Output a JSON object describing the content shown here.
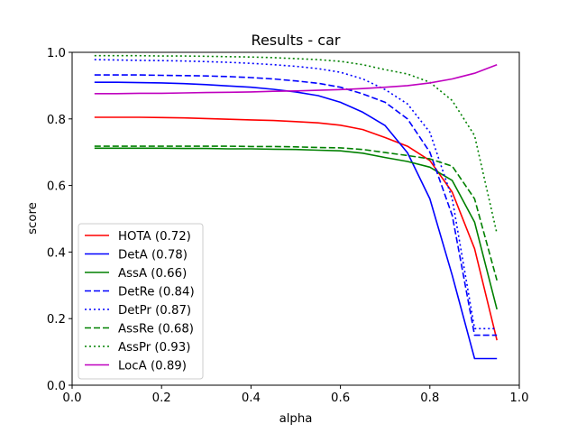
{
  "chart_data": {
    "type": "line",
    "title": "Results - car",
    "xlabel": "alpha",
    "ylabel": "score",
    "xlim": [
      0.0,
      1.0
    ],
    "ylim": [
      0.0,
      1.0
    ],
    "xticks": [
      "0.0",
      "0.2",
      "0.4",
      "0.6",
      "0.8",
      "1.0"
    ],
    "yticks": [
      "0.0",
      "0.2",
      "0.4",
      "0.6",
      "0.8",
      "1.0"
    ],
    "grid": false,
    "legend_position": "lower-left",
    "x": [
      0.05,
      0.1,
      0.15,
      0.2,
      0.25,
      0.3,
      0.35,
      0.4,
      0.45,
      0.5,
      0.55,
      0.6,
      0.65,
      0.7,
      0.75,
      0.8,
      0.85,
      0.9,
      0.95
    ],
    "series": [
      {
        "name": "HOTA (0.72)",
        "color": "#ff0000",
        "dash": "solid",
        "values": [
          0.805,
          0.805,
          0.805,
          0.804,
          0.803,
          0.801,
          0.799,
          0.797,
          0.795,
          0.792,
          0.788,
          0.781,
          0.768,
          0.744,
          0.718,
          0.675,
          0.58,
          0.41,
          0.135
        ]
      },
      {
        "name": "DetA (0.78)",
        "color": "#0000ff",
        "dash": "solid",
        "values": [
          0.91,
          0.91,
          0.909,
          0.908,
          0.906,
          0.903,
          0.899,
          0.895,
          0.889,
          0.881,
          0.87,
          0.85,
          0.82,
          0.78,
          0.698,
          0.56,
          0.33,
          0.08,
          0.08
        ]
      },
      {
        "name": "AssA (0.66)",
        "color": "#008000",
        "dash": "solid",
        "values": [
          0.712,
          0.712,
          0.712,
          0.712,
          0.711,
          0.711,
          0.71,
          0.71,
          0.709,
          0.708,
          0.706,
          0.704,
          0.697,
          0.684,
          0.672,
          0.655,
          0.615,
          0.49,
          0.228
        ]
      },
      {
        "name": "DetRe (0.84)",
        "color": "#0000ff",
        "dash": "dashed",
        "values": [
          0.932,
          0.932,
          0.932,
          0.931,
          0.93,
          0.929,
          0.927,
          0.924,
          0.92,
          0.914,
          0.907,
          0.895,
          0.875,
          0.85,
          0.8,
          0.7,
          0.51,
          0.15,
          0.15
        ]
      },
      {
        "name": "DetPr (0.87)",
        "color": "#0000ff",
        "dash": "dotted",
        "values": [
          0.978,
          0.977,
          0.976,
          0.975,
          0.974,
          0.972,
          0.97,
          0.967,
          0.963,
          0.958,
          0.951,
          0.94,
          0.92,
          0.888,
          0.845,
          0.76,
          0.56,
          0.17,
          0.17
        ]
      },
      {
        "name": "AssRe (0.68)",
        "color": "#008000",
        "dash": "dashed",
        "values": [
          0.718,
          0.718,
          0.718,
          0.718,
          0.718,
          0.718,
          0.718,
          0.717,
          0.717,
          0.716,
          0.714,
          0.713,
          0.708,
          0.699,
          0.69,
          0.68,
          0.658,
          0.56,
          0.315
        ]
      },
      {
        "name": "AssPr (0.93)",
        "color": "#008000",
        "dash": "dotted",
        "values": [
          0.99,
          0.99,
          0.99,
          0.989,
          0.989,
          0.988,
          0.987,
          0.986,
          0.984,
          0.981,
          0.978,
          0.973,
          0.963,
          0.948,
          0.935,
          0.91,
          0.855,
          0.75,
          0.455
        ]
      },
      {
        "name": "LocA (0.89)",
        "color": "#bf00bf",
        "dash": "solid",
        "values": [
          0.876,
          0.876,
          0.877,
          0.877,
          0.878,
          0.879,
          0.88,
          0.881,
          0.883,
          0.884,
          0.886,
          0.888,
          0.891,
          0.895,
          0.9,
          0.908,
          0.92,
          0.937,
          0.963
        ]
      }
    ]
  }
}
